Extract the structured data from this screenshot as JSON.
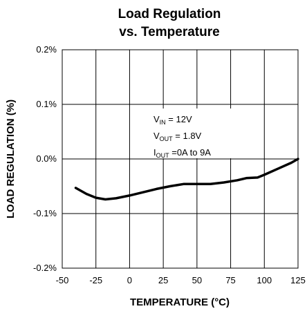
{
  "chart_data": {
    "type": "line",
    "title": [
      "Load Regulation",
      "vs. Temperature"
    ],
    "xlabel": "TEMPERATURE (°C)",
    "ylabel": "LOAD REGULATION (%)",
    "xlim": [
      -50,
      125
    ],
    "ylim": [
      -0.2,
      0.2
    ],
    "x_ticks": [
      -50,
      -25,
      0,
      25,
      50,
      75,
      100,
      125
    ],
    "x_tick_labels": [
      "-50",
      "-25",
      "0",
      "25",
      "50",
      "75",
      "100",
      "125"
    ],
    "y_ticks": [
      0.2,
      0.1,
      0.0,
      -0.1,
      -0.2
    ],
    "y_tick_labels": [
      "0.2%",
      "0.1%",
      "0.0%",
      "-0.1%",
      "-0.2%"
    ],
    "grid": true,
    "line_color": "#000000",
    "series": [
      {
        "x": [
          -40,
          -32,
          -25,
          -18,
          -10,
          0,
          10,
          20,
          30,
          40,
          50,
          60,
          70,
          80,
          87,
          95,
          100,
          110,
          120,
          125
        ],
        "y": [
          -0.053,
          -0.064,
          -0.071,
          -0.074,
          -0.072,
          -0.067,
          -0.061,
          -0.055,
          -0.05,
          -0.046,
          -0.046,
          -0.046,
          -0.043,
          -0.039,
          -0.035,
          -0.034,
          -0.029,
          -0.018,
          -0.007,
          0.0
        ]
      }
    ],
    "annotation": [
      {
        "main": "V",
        "sub": "IN",
        "rest": " = 12V"
      },
      {
        "main": "V",
        "sub": "OUT",
        "rest": " = 1.8V"
      },
      {
        "main": "I",
        "sub": "OUT",
        "rest": " =0A to 9A"
      }
    ]
  }
}
